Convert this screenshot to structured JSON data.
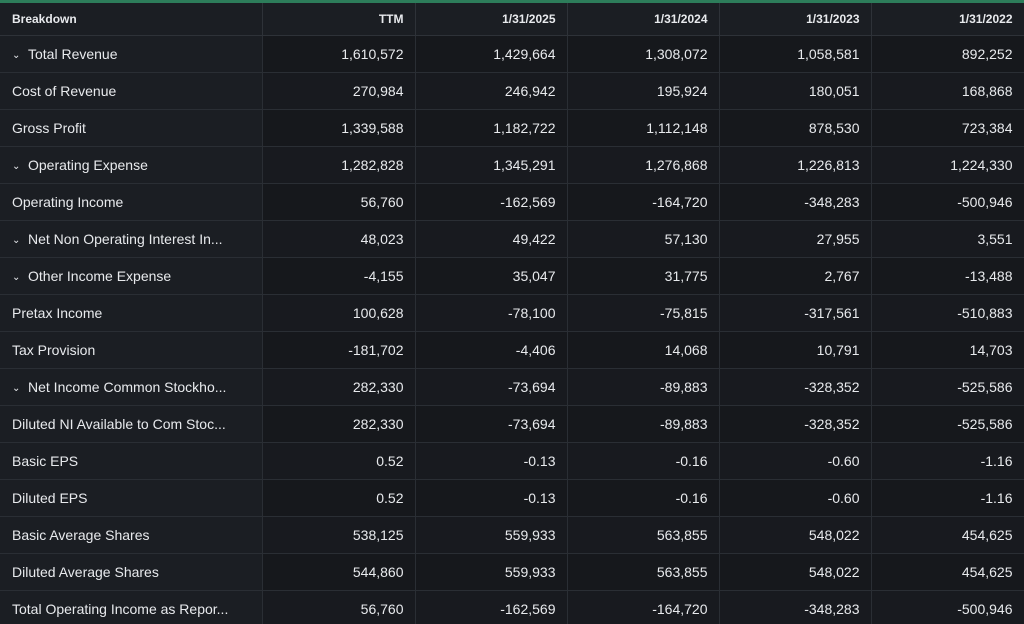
{
  "header": {
    "columns": [
      "Breakdown",
      "TTM",
      "1/31/2025",
      "1/31/2024",
      "1/31/2023",
      "1/31/2022"
    ]
  },
  "rows": [
    {
      "label": "Total Revenue",
      "expandable": true,
      "values": [
        "1,610,572",
        "1,429,664",
        "1,308,072",
        "1,058,581",
        "892,252"
      ]
    },
    {
      "label": "Cost of Revenue",
      "expandable": false,
      "values": [
        "270,984",
        "246,942",
        "195,924",
        "180,051",
        "168,868"
      ]
    },
    {
      "label": "Gross Profit",
      "expandable": false,
      "values": [
        "1,339,588",
        "1,182,722",
        "1,112,148",
        "878,530",
        "723,384"
      ]
    },
    {
      "label": "Operating Expense",
      "expandable": true,
      "values": [
        "1,282,828",
        "1,345,291",
        "1,276,868",
        "1,226,813",
        "1,224,330"
      ]
    },
    {
      "label": "Operating Income",
      "expandable": false,
      "values": [
        "56,760",
        "-162,569",
        "-164,720",
        "-348,283",
        "-500,946"
      ]
    },
    {
      "label": "Net Non Operating Interest In...",
      "expandable": true,
      "values": [
        "48,023",
        "49,422",
        "57,130",
        "27,955",
        "3,551"
      ]
    },
    {
      "label": "Other Income Expense",
      "expandable": true,
      "values": [
        "-4,155",
        "35,047",
        "31,775",
        "2,767",
        "-13,488"
      ]
    },
    {
      "label": "Pretax Income",
      "expandable": false,
      "values": [
        "100,628",
        "-78,100",
        "-75,815",
        "-317,561",
        "-510,883"
      ]
    },
    {
      "label": "Tax Provision",
      "expandable": false,
      "values": [
        "-181,702",
        "-4,406",
        "14,068",
        "10,791",
        "14,703"
      ]
    },
    {
      "label": "Net Income Common Stockho...",
      "expandable": true,
      "values": [
        "282,330",
        "-73,694",
        "-89,883",
        "-328,352",
        "-525,586"
      ]
    },
    {
      "label": "Diluted NI Available to Com Stoc...",
      "expandable": false,
      "values": [
        "282,330",
        "-73,694",
        "-89,883",
        "-328,352",
        "-525,586"
      ]
    },
    {
      "label": "Basic EPS",
      "expandable": false,
      "values": [
        "0.52",
        "-0.13",
        "-0.16",
        "-0.60",
        "-1.16"
      ]
    },
    {
      "label": "Diluted EPS",
      "expandable": false,
      "values": [
        "0.52",
        "-0.13",
        "-0.16",
        "-0.60",
        "-1.16"
      ]
    },
    {
      "label": "Basic Average Shares",
      "expandable": false,
      "values": [
        "538,125",
        "559,933",
        "563,855",
        "548,022",
        "454,625"
      ]
    },
    {
      "label": "Diluted Average Shares",
      "expandable": false,
      "values": [
        "544,860",
        "559,933",
        "563,855",
        "548,022",
        "454,625"
      ]
    },
    {
      "label": "Total Operating Income as Repor...",
      "expandable": false,
      "values": [
        "56,760",
        "-162,569",
        "-164,720",
        "-348,283",
        "-500,946"
      ]
    }
  ],
  "icons": {
    "expand": "chevron-down-icon",
    "glyph": "⌄"
  },
  "colors": {
    "background": "#14161a",
    "label_column": "#1b1e23",
    "accent_bar": "#2d7d5a",
    "text": "#e8eaed"
  }
}
